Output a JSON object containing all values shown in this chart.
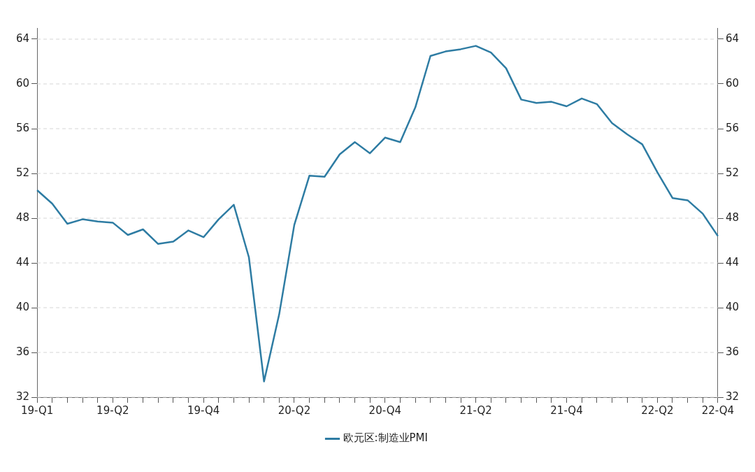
{
  "chart_data": {
    "type": "line",
    "categories": [
      "19-Q1",
      null,
      null,
      null,
      null,
      "19-Q2",
      null,
      null,
      null,
      null,
      null,
      "19-Q4",
      null,
      null,
      null,
      null,
      null,
      "20-Q2",
      null,
      null,
      null,
      null,
      null,
      "20-Q4",
      null,
      null,
      null,
      null,
      null,
      "21-Q2",
      null,
      null,
      null,
      null,
      null,
      "21-Q4",
      null,
      null,
      null,
      null,
      null,
      "22-Q2",
      null,
      null,
      null,
      "22-Q4"
    ],
    "series": [
      {
        "name": "欧元区:制造业PMI",
        "color": "#2e7ca3",
        "values": [
          50.5,
          49.3,
          47.5,
          47.9,
          47.7,
          47.6,
          46.5,
          47.0,
          45.7,
          45.9,
          46.9,
          46.3,
          47.9,
          49.2,
          44.5,
          33.4,
          39.4,
          47.4,
          51.8,
          51.7,
          53.7,
          54.8,
          53.8,
          55.2,
          54.8,
          57.9,
          62.5,
          62.9,
          63.1,
          63.4,
          62.8,
          61.4,
          58.6,
          58.3,
          58.4,
          58.0,
          58.7,
          58.2,
          56.5,
          55.5,
          54.6,
          52.1,
          49.8,
          49.6,
          48.4,
          46.4
        ]
      }
    ],
    "ylim": [
      32,
      65
    ],
    "yticks": [
      32,
      36,
      40,
      44,
      48,
      52,
      56,
      60,
      64
    ],
    "y2lim": [
      32,
      65
    ],
    "y2ticks": [
      32,
      36,
      40,
      44,
      48,
      52,
      56,
      60,
      64
    ],
    "grid": "y",
    "legend": "bottom",
    "marker": "none",
    "line_style": "solid"
  }
}
